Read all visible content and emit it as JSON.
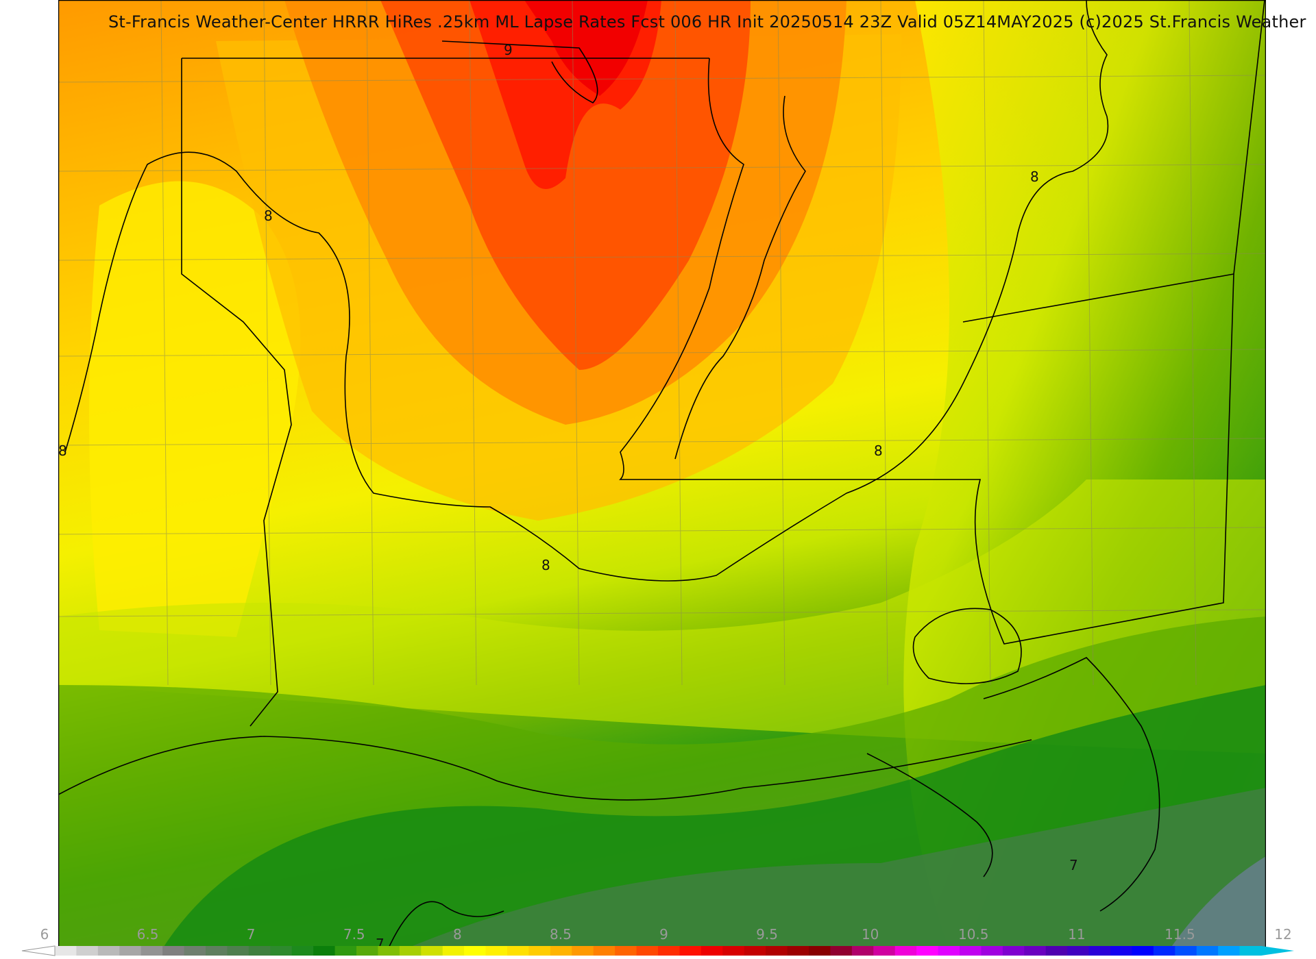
{
  "title": "St-Francis Weather-Center HRRR HiRes .25km ML Lapse Rates  Fcst 006 HR Init 20250514 23Z  Valid 05Z14MAY2025   (c)2025 St.Francis Weather",
  "contour_labels": [
    "9",
    "8",
    "8",
    "8",
    "8",
    "8",
    "7",
    "7"
  ],
  "colorbar": {
    "ticks": [
      "6",
      "6.5",
      "7",
      "7.5",
      "8",
      "8.5",
      "9",
      "9.5",
      "10",
      "10.5",
      "11",
      "11.5",
      "12"
    ],
    "colors": [
      "#e6e6e6",
      "#cfcfcf",
      "#b9b9b9",
      "#a6a6a6",
      "#939393",
      "#808080",
      "#6f7f6f",
      "#5f7f5f",
      "#4f7f4f",
      "#3f803f",
      "#2e8a2e",
      "#1d8a1d",
      "#0b7f0b",
      "#2f9a10",
      "#57aa0a",
      "#7fbf06",
      "#a6cf03",
      "#cfe000",
      "#f2f200",
      "#ffff00",
      "#fff000",
      "#ffe000",
      "#ffcc00",
      "#ffb400",
      "#ff9a00",
      "#ff8000",
      "#ff6400",
      "#ff4800",
      "#ff2c00",
      "#ff1000",
      "#ee0000",
      "#d80000",
      "#c40000",
      "#b00000",
      "#9c0000",
      "#880000",
      "#900030",
      "#b0006a",
      "#d000a0",
      "#f000d8",
      "#ff00ff",
      "#e000ff",
      "#c000f0",
      "#a000e0",
      "#8000d0",
      "#6a00c0",
      "#5000b0",
      "#4000c0",
      "#2a00d8",
      "#1400f0",
      "#0000ff",
      "#0028ff",
      "#0050ff",
      "#0078ff",
      "#00a0ff",
      "#00c0e0"
    ]
  },
  "fill_colors": {
    "red": "#ff1a00",
    "orange_red": "#ff4a00",
    "orange": "#ff8c00",
    "amber": "#ffbf00",
    "yellow": "#ffee00",
    "lime": "#c8e600",
    "yellow_green": "#9ccc00",
    "green": "#58aa00",
    "dark_green": "#138a13",
    "deep_green": "#3f8040",
    "slate": "#5f7f7f"
  },
  "lines": {
    "boundary": "#000000",
    "county": "#8a8a55"
  }
}
